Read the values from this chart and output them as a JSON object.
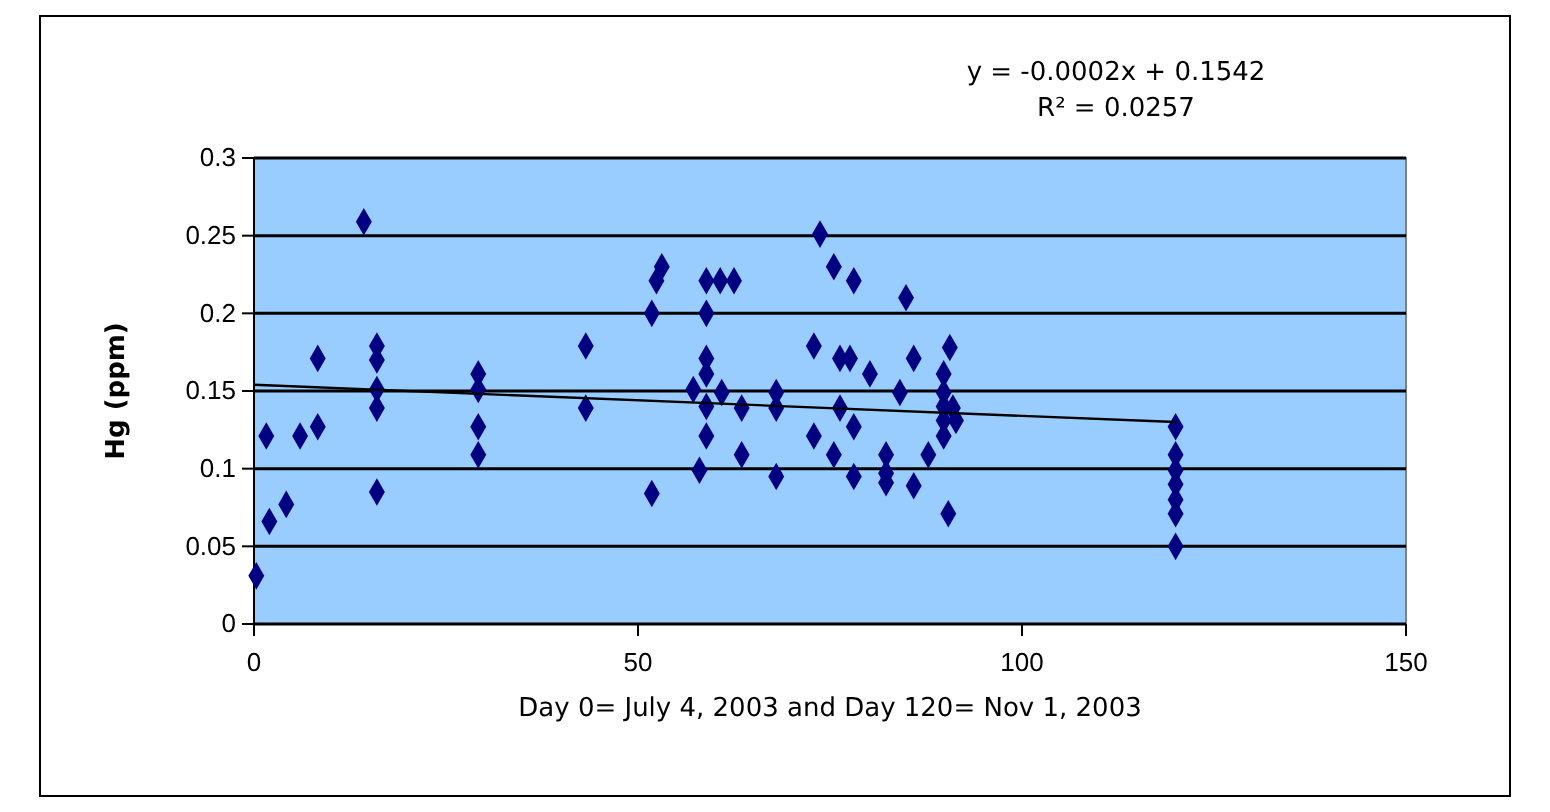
{
  "chart_data": {
    "type": "scatter",
    "xlabel": "Day 0= July 4, 2003 and Day 120= Nov 1, 2003",
    "ylabel": "Hg (ppm)",
    "annotations": [
      "y = -0.0002x  + 0.1542",
      "R² = 0.0257"
    ],
    "xlim": [
      0,
      150
    ],
    "xticks": [
      0,
      50,
      100,
      150
    ],
    "ylim": [
      0,
      0.3
    ],
    "yticks": [
      0,
      0.05,
      0.1,
      0.15,
      0.2,
      0.25,
      0.3
    ],
    "grid": "y",
    "marker": "diamond",
    "series": [
      {
        "color": "#000080",
        "x": [
          0.3,
          1.6,
          2,
          4.2,
          6,
          8.3,
          8.3,
          14.3,
          16,
          16,
          16,
          16,
          16,
          29.2,
          29.2,
          29.2,
          29.2,
          43.2,
          43.2,
          51.8,
          51.8,
          52.4,
          53.1,
          58.9,
          60.7,
          62.5,
          58.9,
          58.9,
          58.9,
          57.2,
          58.9,
          60.9,
          58.9,
          58,
          63.5,
          63.5,
          68,
          68,
          68,
          73.7,
          75.5,
          78.1,
          84.9,
          72.9,
          76.3,
          77.6,
          80.2,
          76.3,
          78.1,
          72.9,
          75.5,
          78.1,
          82.3,
          82.3,
          82.3,
          84.1,
          85.9,
          85.9,
          87.8,
          89.8,
          89.8,
          89.8,
          89.8,
          89.8,
          90.6,
          91.4,
          90.4,
          91,
          120,
          120,
          120,
          120,
          120,
          120,
          120
        ],
        "values": [
          0.031,
          0.121,
          0.066,
          0.077,
          0.121,
          0.127,
          0.171,
          0.259,
          0.179,
          0.17,
          0.151,
          0.139,
          0.085,
          0.161,
          0.151,
          0.127,
          0.109,
          0.179,
          0.139,
          0.2,
          0.084,
          0.221,
          0.23,
          0.221,
          0.221,
          0.221,
          0.2,
          0.171,
          0.161,
          0.151,
          0.14,
          0.149,
          0.121,
          0.099,
          0.139,
          0.109,
          0.149,
          0.139,
          0.095,
          0.251,
          0.23,
          0.221,
          0.21,
          0.179,
          0.171,
          0.171,
          0.161,
          0.139,
          0.127,
          0.121,
          0.109,
          0.095,
          0.109,
          0.097,
          0.091,
          0.149,
          0.171,
          0.089,
          0.109,
          0.161,
          0.149,
          0.14,
          0.131,
          0.121,
          0.178,
          0.131,
          0.071,
          0.139,
          0.127,
          0.109,
          0.099,
          0.09,
          0.08,
          0.071,
          0.05
        ]
      },
      {
        "type": "line",
        "color": "#000000",
        "line_style": "solid",
        "marker": "none",
        "x": [
          0,
          120
        ],
        "values": [
          0.154,
          0.13
        ]
      }
    ]
  }
}
